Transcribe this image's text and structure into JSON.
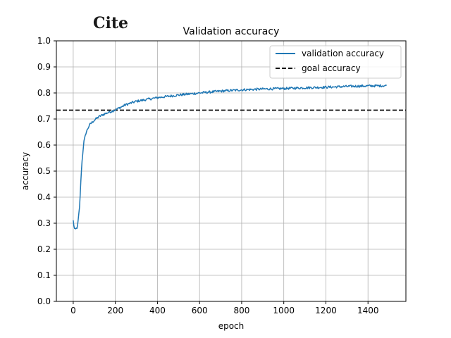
{
  "logo": {
    "text": "Cite"
  },
  "chart_data": {
    "type": "line",
    "title": "Validation accuracy",
    "xlabel": "epoch",
    "ylabel": "accuracy",
    "xlim": [
      -80,
      1580
    ],
    "ylim": [
      0.0,
      1.0
    ],
    "xticks": [
      0,
      200,
      400,
      600,
      800,
      1000,
      1200,
      1400
    ],
    "yticks": [
      0.0,
      0.1,
      0.2,
      0.3,
      0.4,
      0.5,
      0.6,
      0.7,
      0.8,
      0.9,
      1.0
    ],
    "xtick_labels": [
      "0",
      "200",
      "400",
      "600",
      "800",
      "1000",
      "1200",
      "1400"
    ],
    "ytick_labels": [
      "0.0",
      "0.1",
      "0.2",
      "0.3",
      "0.4",
      "0.5",
      "0.6",
      "0.7",
      "0.8",
      "0.9",
      "1.0"
    ],
    "grid": true,
    "legend_position": "top-right",
    "series": [
      {
        "name": "validation accuracy",
        "style": "solid",
        "color": "#1f77b4",
        "x": [
          0,
          5,
          10,
          20,
          30,
          40,
          50,
          60,
          70,
          80,
          100,
          120,
          150,
          200,
          250,
          300,
          400,
          500,
          600,
          700,
          800,
          900,
          1000,
          1100,
          1200,
          1300,
          1400,
          1490
        ],
        "y": [
          0.31,
          0.28,
          0.275,
          0.285,
          0.36,
          0.52,
          0.61,
          0.645,
          0.665,
          0.68,
          0.695,
          0.708,
          0.72,
          0.735,
          0.755,
          0.768,
          0.782,
          0.792,
          0.8,
          0.807,
          0.812,
          0.815,
          0.817,
          0.82,
          0.822,
          0.825,
          0.827,
          0.828
        ]
      },
      {
        "name": "goal accuracy",
        "style": "dashed",
        "color": "#000000",
        "y_constant": 0.734
      }
    ]
  }
}
